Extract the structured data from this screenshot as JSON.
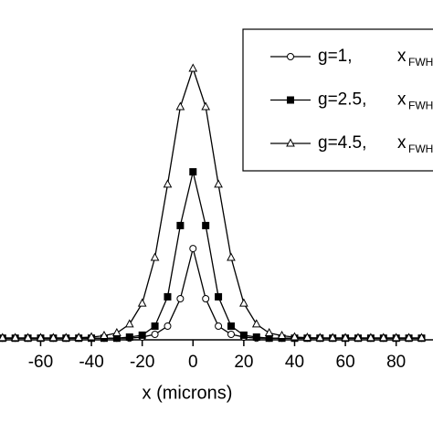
{
  "chart_data": {
    "type": "line",
    "x_label": "x  (microns)",
    "x": [
      -75,
      -70,
      -65,
      -60,
      -55,
      -50,
      -45,
      -40,
      -35,
      -30,
      -25,
      -20,
      -15,
      -10,
      -5,
      0,
      5,
      10,
      15,
      20,
      25,
      30,
      35,
      40,
      45,
      50,
      55,
      60,
      65,
      70,
      75,
      80,
      85,
      90
    ],
    "series": [
      {
        "name": "g=1,",
        "color": "#000000",
        "marker": "circle",
        "values": [
          0.006,
          0.006,
          0.006,
          0.006,
          0.006,
          0.006,
          0.006,
          0.006,
          0.006,
          0.006,
          0.006,
          0.01,
          0.02,
          0.05,
          0.15,
          0.333,
          0.15,
          0.05,
          0.02,
          0.01,
          0.006,
          0.006,
          0.006,
          0.006,
          0.006,
          0.006,
          0.006,
          0.006,
          0.006,
          0.006,
          0.006,
          0.006,
          0.006,
          0.006
        ]
      },
      {
        "name": "g=2.5,",
        "color": "#000000",
        "marker": "square",
        "values": [
          0.006,
          0.006,
          0.006,
          0.006,
          0.006,
          0.006,
          0.006,
          0.006,
          0.006,
          0.006,
          0.01,
          0.017,
          0.05,
          0.157,
          0.417,
          0.613,
          0.417,
          0.157,
          0.05,
          0.017,
          0.01,
          0.006,
          0.006,
          0.006,
          0.006,
          0.006,
          0.006,
          0.006,
          0.006,
          0.006,
          0.006,
          0.006,
          0.006,
          0.006
        ]
      },
      {
        "name": "g=4.5,",
        "color": "#000000",
        "marker": "triangle",
        "values": [
          0.007,
          0.007,
          0.007,
          0.007,
          0.007,
          0.007,
          0.008,
          0.01,
          0.015,
          0.025,
          0.057,
          0.133,
          0.3,
          0.567,
          0.85,
          0.99,
          0.85,
          0.567,
          0.3,
          0.133,
          0.057,
          0.025,
          0.015,
          0.01,
          0.008,
          0.007,
          0.007,
          0.007,
          0.007,
          0.007,
          0.007,
          0.007,
          0.007,
          0.007
        ]
      }
    ],
    "legend_var": "x",
    "legend_sub": "FWHM",
    "xlim": [
      -76,
      94.5
    ],
    "ylim": [
      0,
      1
    ],
    "xticks": [
      -60,
      -40,
      -20,
      0,
      20,
      40,
      60,
      80
    ]
  }
}
